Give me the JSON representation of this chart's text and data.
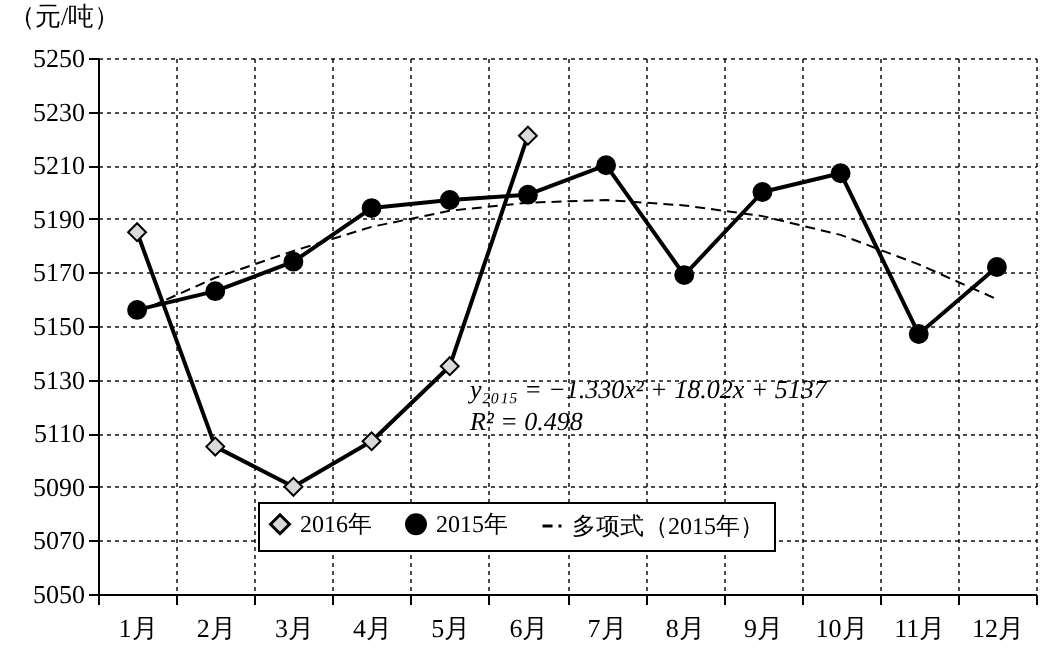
{
  "chart_data": {
    "type": "line",
    "ylabel": "（元/吨）",
    "categories": [
      "1月",
      "2月",
      "3月",
      "4月",
      "5月",
      "6月",
      "7月",
      "8月",
      "9月",
      "10月",
      "11月",
      "12月"
    ],
    "series": [
      {
        "name": "2016年",
        "color": "#000000",
        "marker": "diamond",
        "line_style": "solid",
        "values": [
          5185,
          5105,
          5090,
          5107,
          5135,
          5221,
          null,
          null,
          null,
          null,
          null,
          null
        ]
      },
      {
        "name": "2015年",
        "color": "#000000",
        "marker": "circle",
        "line_style": "solid",
        "values": [
          5156,
          5163,
          5174,
          5194,
          5197,
          5199,
          5210,
          5169,
          5200,
          5207,
          5147,
          5172
        ]
      },
      {
        "name": "多项式（2015年）",
        "color": "#000000",
        "marker": "none",
        "line_style": "dashed",
        "values": [
          5155,
          5168,
          5178,
          5187,
          5193,
          5196,
          5197,
          5195,
          5191,
          5184,
          5173,
          5160
        ]
      }
    ],
    "ylim": [
      5050,
      5250
    ],
    "yticks": [
      5050,
      5070,
      5090,
      5110,
      5130,
      5150,
      5170,
      5190,
      5210,
      5230,
      5250
    ],
    "grid": true,
    "legend": "bottom",
    "annotations": [
      "y₂₀₁₅ = −1.330x² + 18.02x + 5137",
      "R² = 0.498"
    ]
  }
}
